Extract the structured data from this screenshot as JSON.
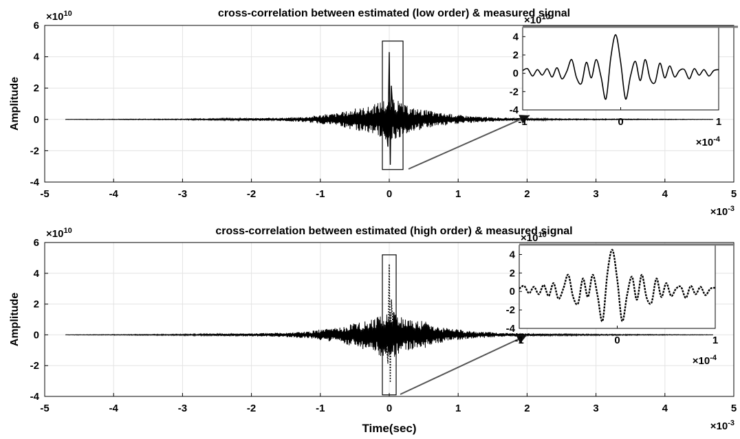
{
  "chart_data": [
    {
      "type": "line",
      "title": "cross-correlation between estimated (low order) & measured signal",
      "xlabel": "",
      "ylabel": "Amplitude",
      "xlim": [
        -5,
        5
      ],
      "ylim": [
        -4,
        6
      ],
      "x_ticks": [
        "-5",
        "-4",
        "-3",
        "-2",
        "-1",
        "0",
        "1",
        "2",
        "3",
        "4",
        "5"
      ],
      "y_ticks": [
        "-4",
        "-2",
        "0",
        "2",
        "4",
        "6"
      ],
      "x_exponent": "-3",
      "y_exponent": "10",
      "grid": true,
      "zoom_box": {
        "xlim": [
          -0.1,
          0.2
        ],
        "ylim": [
          -3.2,
          5.0
        ]
      },
      "series": [
        {
          "peak": {
            "x": 0,
            "y": 4.3
          },
          "trough": {
            "x": 0,
            "y": -2.9
          },
          "envelope": [
            [
              -4.7,
              0.01
            ],
            [
              -3.0,
              0.03
            ],
            [
              -2.0,
              0.08
            ],
            [
              -1.5,
              0.12
            ],
            [
              -1.2,
              0.18
            ],
            [
              -1.0,
              0.3
            ],
            [
              -0.7,
              0.45
            ],
            [
              -0.5,
              0.7
            ],
            [
              -0.3,
              0.85
            ],
            [
              -0.2,
              1.0
            ],
            [
              -0.1,
              1.3
            ],
            [
              0.1,
              1.3
            ],
            [
              0.2,
              1.0
            ],
            [
              0.3,
              0.8
            ],
            [
              0.5,
              0.65
            ],
            [
              0.7,
              0.45
            ],
            [
              1.0,
              0.3
            ],
            [
              1.3,
              0.18
            ],
            [
              1.7,
              0.1
            ],
            [
              2.5,
              0.04
            ],
            [
              4.7,
              0.01
            ]
          ],
          "style": "solid"
        }
      ],
      "inset": {
        "xlim": [
          -1,
          1
        ],
        "ylim": [
          -4,
          5
        ],
        "x_ticks": [
          "-1",
          "0",
          "1"
        ],
        "y_ticks": [
          "-4",
          "-2",
          "0",
          "2",
          "4"
        ],
        "x_exponent": "-4",
        "y_exponent": "10",
        "x": [
          -1.0,
          -0.95,
          -0.9,
          -0.85,
          -0.8,
          -0.75,
          -0.7,
          -0.65,
          -0.6,
          -0.55,
          -0.5,
          -0.45,
          -0.4,
          -0.35,
          -0.3,
          -0.25,
          -0.2,
          -0.15,
          -0.1,
          -0.05,
          0.0,
          0.05,
          0.1,
          0.15,
          0.2,
          0.25,
          0.3,
          0.35,
          0.4,
          0.45,
          0.5,
          0.55,
          0.6,
          0.65,
          0.7,
          0.75,
          0.8,
          0.85,
          0.9,
          0.95,
          1.0
        ],
        "y": [
          0.3,
          0.5,
          -0.3,
          0.4,
          -0.2,
          0.5,
          -0.4,
          0.6,
          -0.6,
          0.2,
          1.5,
          -0.5,
          -1.1,
          1.2,
          -0.5,
          1.5,
          -0.4,
          -2.8,
          1.8,
          4.2,
          1.2,
          -2.8,
          -0.3,
          1.3,
          -0.8,
          1.5,
          -0.6,
          -1.0,
          1.1,
          -0.5,
          0.8,
          -0.4,
          0.3,
          0.4,
          -0.6,
          0.5,
          -0.2,
          0.4,
          -0.3,
          0.3,
          0.4
        ],
        "style": "solid"
      }
    },
    {
      "type": "line",
      "title": "cross-correlation between estimated (high order) & measured signal",
      "xlabel": "Time(sec)",
      "ylabel": "Amplitude",
      "xlim": [
        -5,
        5
      ],
      "ylim": [
        -4,
        6
      ],
      "x_ticks": [
        "-5",
        "-4",
        "-3",
        "-2",
        "-1",
        "0",
        "1",
        "2",
        "3",
        "4",
        "5"
      ],
      "y_ticks": [
        "-4",
        "-2",
        "0",
        "2",
        "4",
        "6"
      ],
      "x_exponent": "-3",
      "y_exponent": "10",
      "grid": true,
      "zoom_box": {
        "xlim": [
          -0.1,
          0.1
        ],
        "ylim": [
          -3.9,
          5.2
        ]
      },
      "series": [
        {
          "peak": {
            "x": 0,
            "y": 4.6
          },
          "trough": {
            "x": 0,
            "y": -3.1
          },
          "envelope": [
            [
              -4.7,
              0.01
            ],
            [
              -3.0,
              0.04
            ],
            [
              -2.0,
              0.1
            ],
            [
              -1.5,
              0.15
            ],
            [
              -1.2,
              0.22
            ],
            [
              -1.0,
              0.35
            ],
            [
              -0.7,
              0.5
            ],
            [
              -0.5,
              0.85
            ],
            [
              -0.3,
              1.0
            ],
            [
              -0.2,
              1.1
            ],
            [
              -0.1,
              1.6
            ],
            [
              0.1,
              1.6
            ],
            [
              0.2,
              1.1
            ],
            [
              0.3,
              1.0
            ],
            [
              0.5,
              0.9
            ],
            [
              0.7,
              0.55
            ],
            [
              1.0,
              0.35
            ],
            [
              1.3,
              0.22
            ],
            [
              1.7,
              0.12
            ],
            [
              2.5,
              0.05
            ],
            [
              4.7,
              0.01
            ]
          ],
          "style": "dotted"
        }
      ],
      "inset": {
        "xlim": [
          -1,
          1
        ],
        "ylim": [
          -4,
          5
        ],
        "x_ticks": [
          "-1",
          "0",
          "1"
        ],
        "y_ticks": [
          "-4",
          "-2",
          "0",
          "2",
          "4"
        ],
        "x_exponent": "-4",
        "y_exponent": "10",
        "x": [
          -1.0,
          -0.95,
          -0.9,
          -0.85,
          -0.8,
          -0.75,
          -0.7,
          -0.65,
          -0.6,
          -0.55,
          -0.5,
          -0.45,
          -0.4,
          -0.35,
          -0.3,
          -0.25,
          -0.2,
          -0.15,
          -0.1,
          -0.05,
          0.0,
          0.05,
          0.1,
          0.15,
          0.2,
          0.25,
          0.3,
          0.35,
          0.4,
          0.45,
          0.5,
          0.55,
          0.6,
          0.65,
          0.7,
          0.75,
          0.8,
          0.85,
          0.9,
          0.95,
          1.0
        ],
        "y": [
          0.3,
          0.6,
          -0.2,
          0.5,
          -0.3,
          0.7,
          -0.5,
          0.9,
          -0.8,
          0.3,
          1.8,
          -0.6,
          -1.3,
          1.4,
          -0.6,
          1.8,
          -0.5,
          -3.2,
          2.0,
          4.5,
          1.3,
          -3.2,
          -0.4,
          1.6,
          -0.9,
          1.8,
          -0.7,
          -1.2,
          1.4,
          -0.6,
          0.9,
          -0.5,
          0.3,
          0.5,
          -0.7,
          0.6,
          -0.3,
          0.5,
          -0.4,
          0.3,
          0.4
        ],
        "style": "dotted"
      }
    }
  ]
}
